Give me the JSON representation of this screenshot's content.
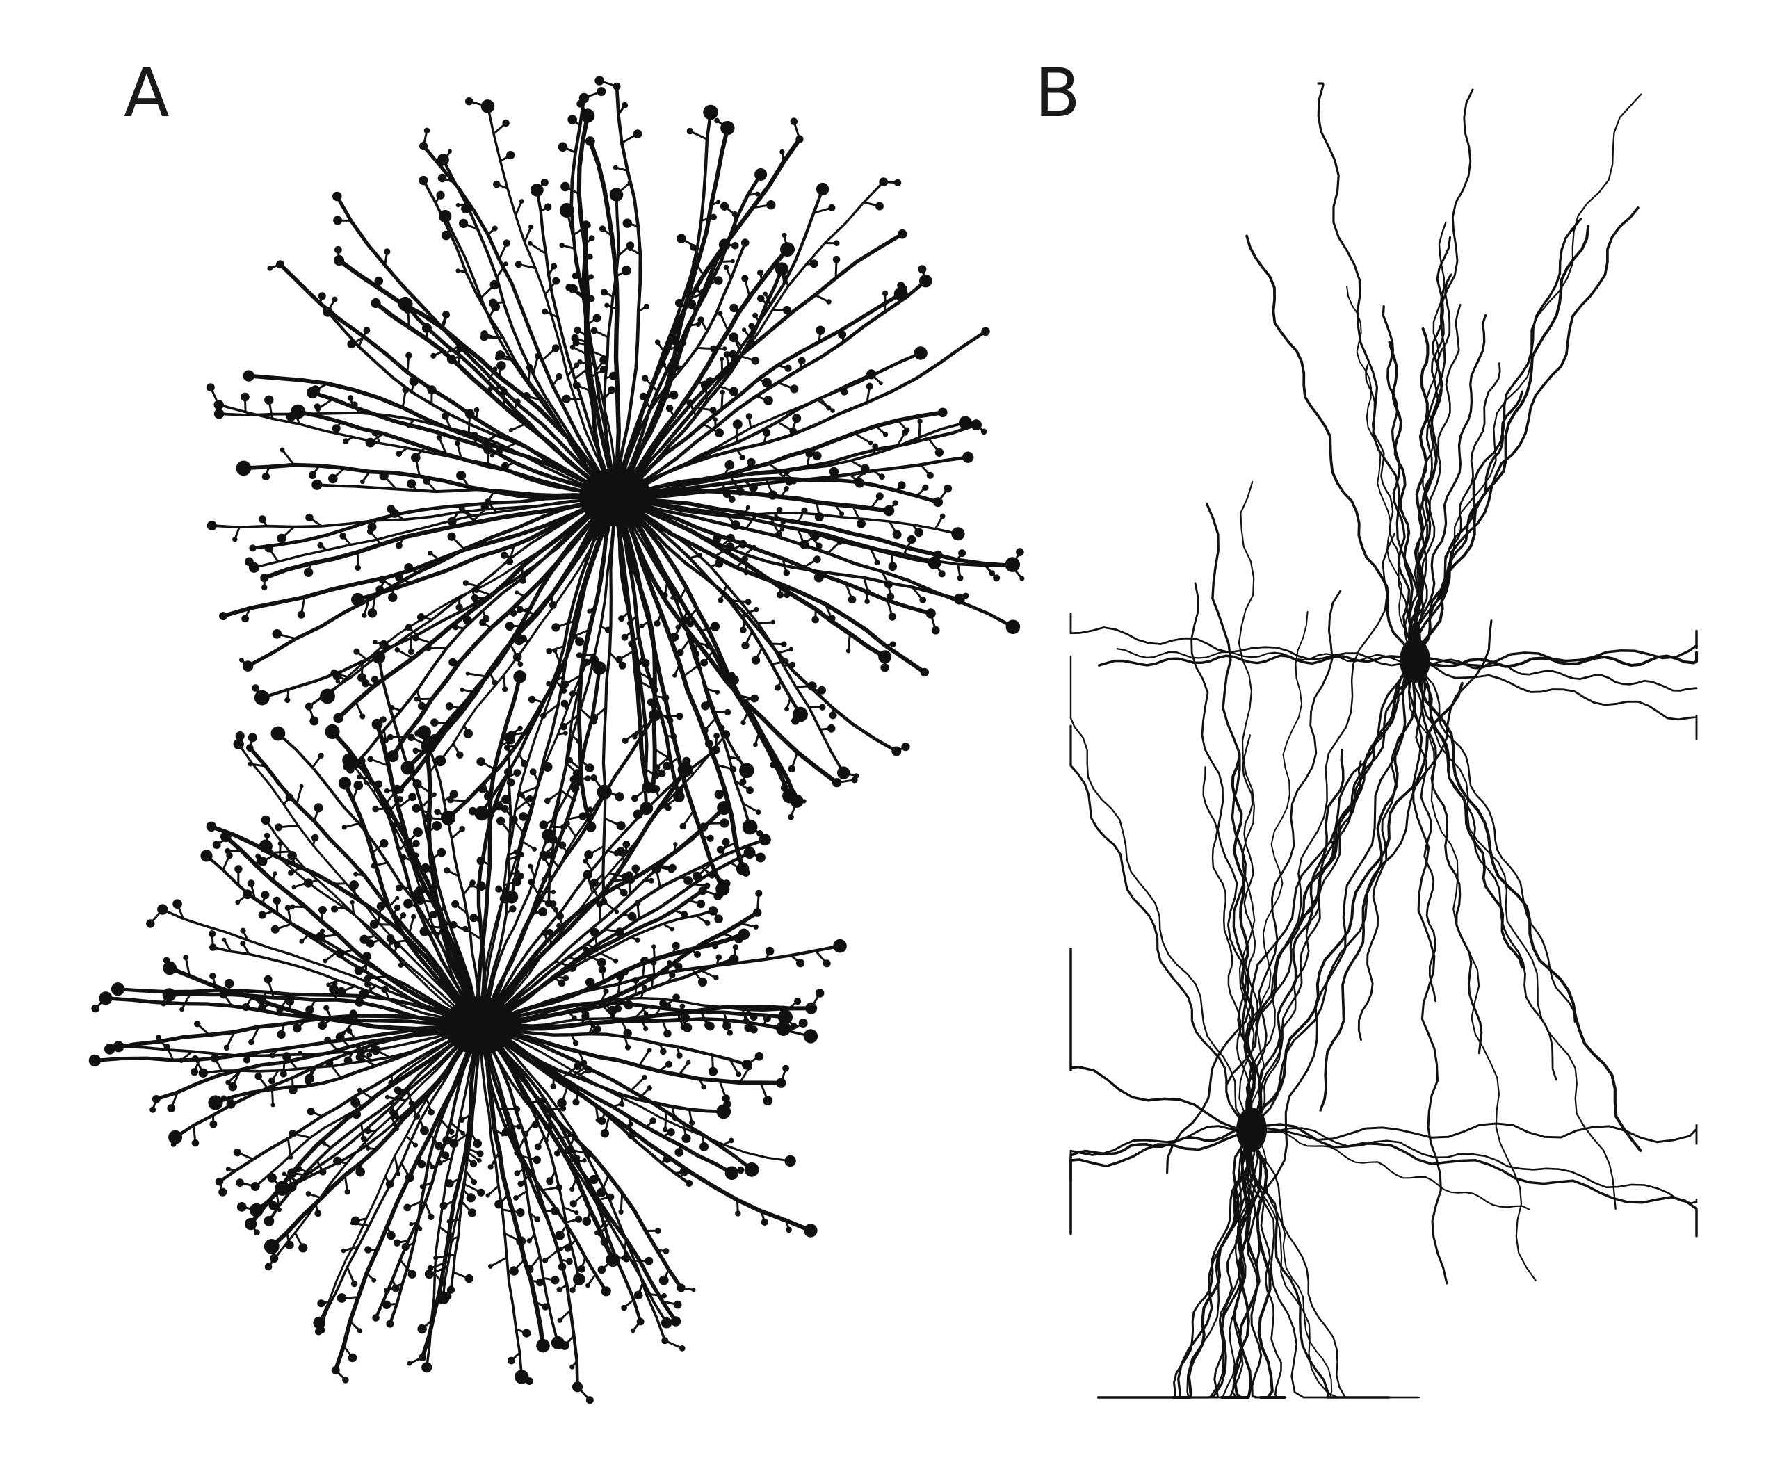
{
  "panels": [
    {
      "id": "A",
      "label": "A",
      "type": "protoplasmic-astrocytes",
      "cells": 2,
      "ink": "#111111"
    },
    {
      "id": "B",
      "label": "B",
      "type": "fibrous-astrocytes",
      "cells": 2,
      "ink": "#111111"
    }
  ]
}
